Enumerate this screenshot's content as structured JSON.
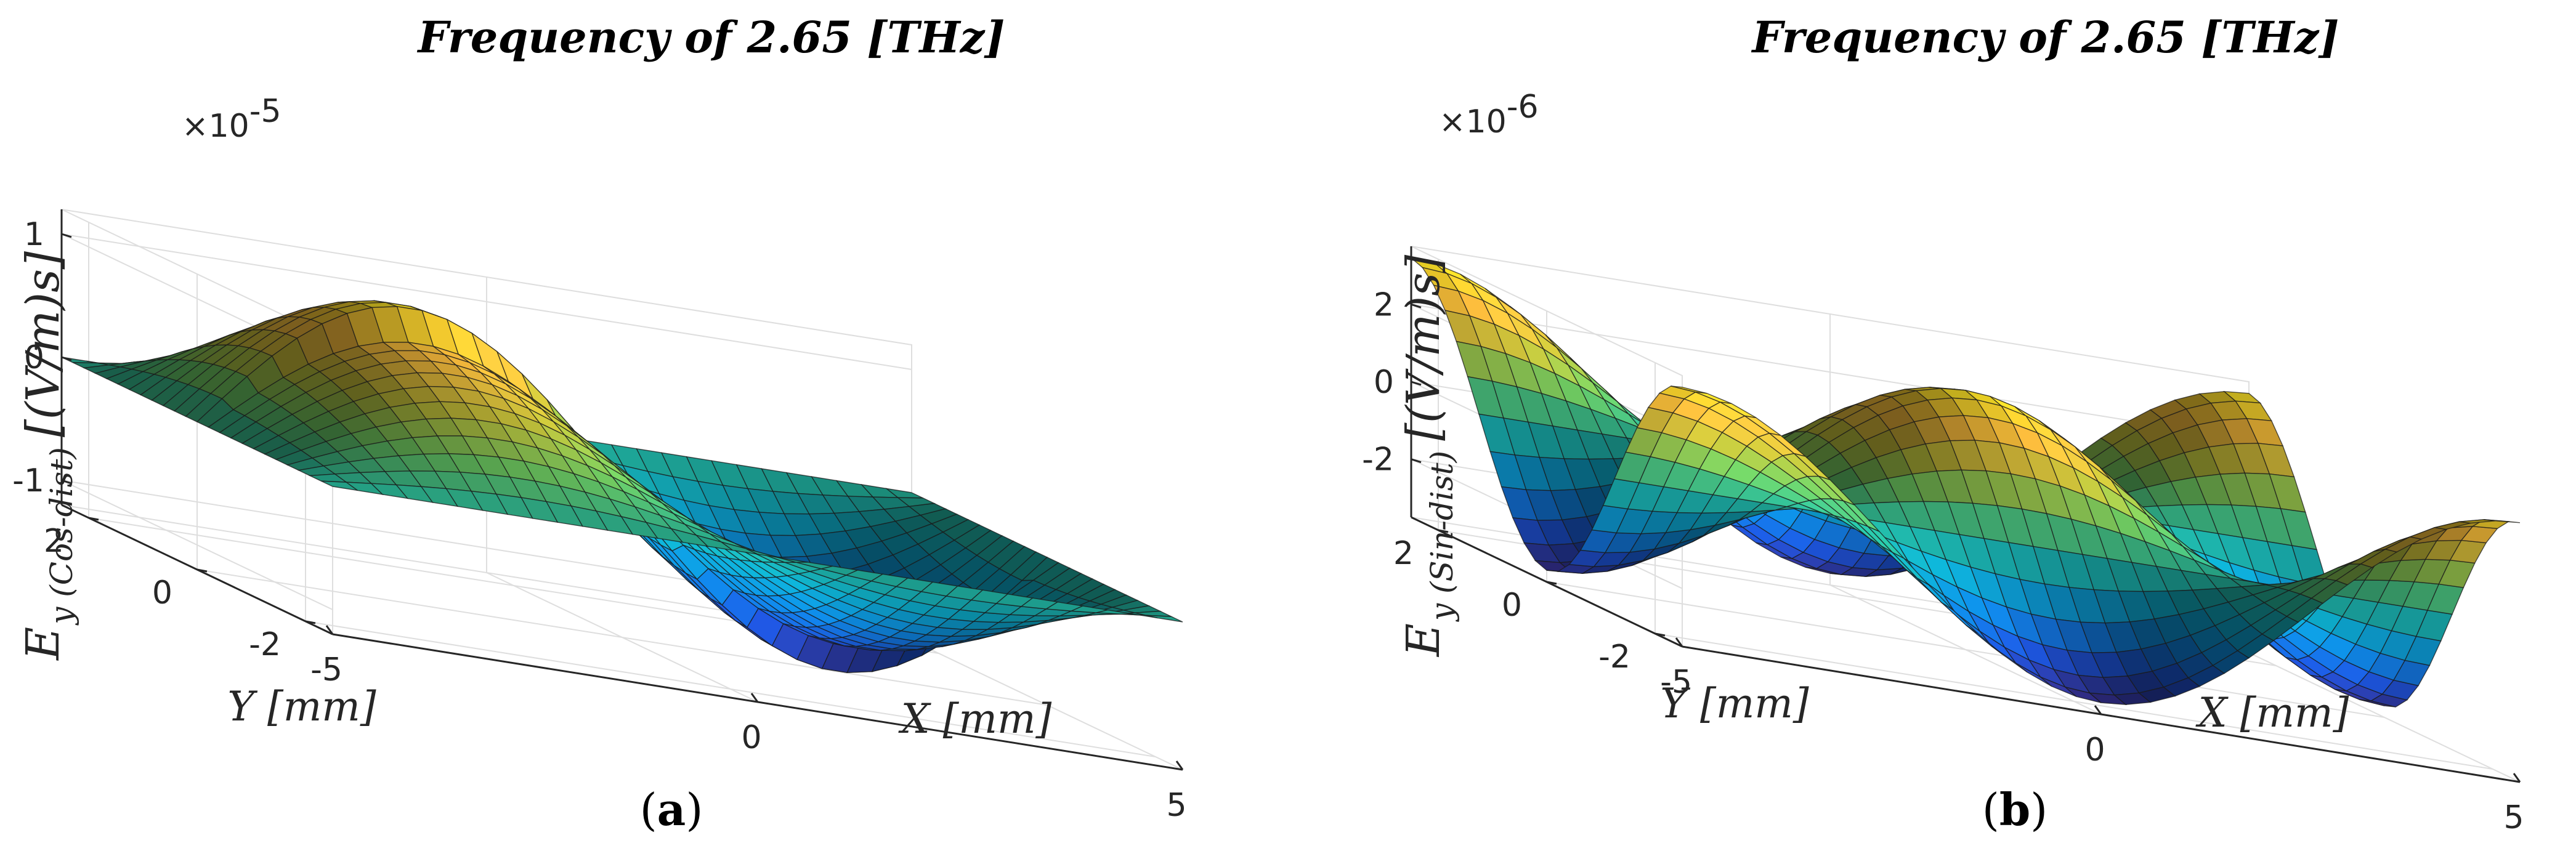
{
  "chart_data": [
    {
      "type": "surface",
      "panel_label": "a",
      "title": "Frequency of 2.65 [THz]",
      "xlabel": "X [mm]",
      "ylabel": "Y [mm]",
      "zlabel_main": "E",
      "zlabel_sub": "y (Cos-dist)",
      "zlabel_unit": "[(V/m)s]",
      "exponent": "×10",
      "exponent_power": "-5",
      "xlim": [
        -5,
        5
      ],
      "ylim": [
        -2.5,
        2.5
      ],
      "zlim": [
        -1.2,
        1.2
      ],
      "xticks": [
        -5,
        0,
        5
      ],
      "xtick_labels": [
        "-5",
        "0",
        "5"
      ],
      "yticks": [
        -2,
        0,
        2
      ],
      "ytick_labels": [
        "-2",
        "0",
        "2"
      ],
      "zticks": [
        -1,
        0,
        1
      ],
      "ztick_labels": [
        "-1",
        "0",
        "1"
      ],
      "function": "z = sin(pi*x/5) * cos(pi*y/5) * 1.2 * (x sign controls peak)",
      "grid": true,
      "colormap": "parula-like (blue → cyan → green → yellow)"
    },
    {
      "type": "surface",
      "panel_label": "b",
      "title": "Frequency of 2.65 [THz]",
      "xlabel": "X [mm]",
      "ylabel": "Y [mm]",
      "zlabel_main": "E",
      "zlabel_sub": "y (Sin-dist)",
      "zlabel_unit": "[(V/m)s]",
      "exponent": "×10",
      "exponent_power": "-6",
      "xlim": [
        -5,
        5
      ],
      "ylim": [
        -2.5,
        2.5
      ],
      "zlim": [
        -3.5,
        3.5
      ],
      "xticks": [
        -5,
        0,
        5
      ],
      "xtick_labels": [
        "-5",
        "0",
        "5"
      ],
      "yticks": [
        -2,
        0,
        2
      ],
      "ytick_labels": [
        "-2",
        "0",
        "2"
      ],
      "zticks": [
        -2,
        0,
        2
      ],
      "ztick_labels": [
        "-2",
        "0",
        "2"
      ],
      "function": "z = 3.2 * sin(2*pi*x/10) * sin(2*pi*y/5)",
      "grid": true,
      "colormap": "parula-like (blue → cyan → green → yellow)"
    }
  ],
  "captions": [
    "(a)",
    "(b)"
  ],
  "caption_letters": [
    "a",
    "b"
  ]
}
